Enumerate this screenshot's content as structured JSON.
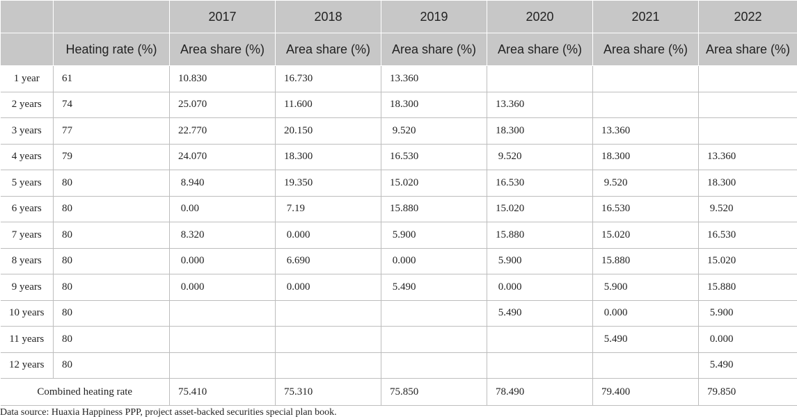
{
  "header": {
    "years": [
      "2017",
      "2018",
      "2019",
      "2020",
      "2021",
      "2022"
    ],
    "heating_rate_label": "Heating rate (%)",
    "area_share_label": "Area share (%)"
  },
  "rows": [
    {
      "label": "1 year",
      "rate": "61",
      "values": [
        "10.830",
        "16.730",
        "13.360",
        "",
        "",
        ""
      ]
    },
    {
      "label": "2 years",
      "rate": "74",
      "values": [
        "25.070",
        "11.600",
        "18.300",
        "13.360",
        "",
        ""
      ]
    },
    {
      "label": "3 years",
      "rate": "77",
      "values": [
        "22.770",
        "20.150",
        " 9.520",
        "18.300",
        "13.360",
        ""
      ]
    },
    {
      "label": "4 years",
      "rate": "79",
      "values": [
        "24.070",
        "18.300",
        "16.530",
        " 9.520",
        "18.300",
        "13.360"
      ]
    },
    {
      "label": "5 years",
      "rate": "80",
      "values": [
        " 8.940",
        "19.350",
        "15.020",
        "16.530",
        " 9.520",
        "18.300"
      ]
    },
    {
      "label": "6 years",
      "rate": "80",
      "values": [
        " 0.00",
        " 7.19",
        "15.880",
        "15.020",
        "16.530",
        " 9.520"
      ]
    },
    {
      "label": "7 years",
      "rate": "80",
      "values": [
        " 8.320",
        " 0.000",
        " 5.900",
        "15.880",
        "15.020",
        "16.530"
      ]
    },
    {
      "label": "8 years",
      "rate": "80",
      "values": [
        " 0.000",
        " 6.690",
        " 0.000",
        " 5.900",
        "15.880",
        "15.020"
      ]
    },
    {
      "label": "9 years",
      "rate": "80",
      "values": [
        " 0.000",
        " 0.000",
        " 5.490",
        " 0.000",
        " 5.900",
        "15.880"
      ]
    },
    {
      "label": "10 years",
      "rate": "80",
      "values": [
        "",
        "",
        "",
        " 5.490",
        " 0.000",
        " 5.900"
      ]
    },
    {
      "label": "11 years",
      "rate": "80",
      "values": [
        "",
        "",
        "",
        "",
        " 5.490",
        " 0.000"
      ]
    },
    {
      "label": "12 years",
      "rate": "80",
      "values": [
        "",
        "",
        "",
        "",
        "",
        " 5.490"
      ]
    }
  ],
  "combined": {
    "label": "Combined heating rate",
    "values": [
      "75.410",
      "75.310",
      "75.850",
      "78.490",
      "79.400",
      "79.850"
    ]
  },
  "footnote": "Data source: Huaxia Happiness PPP, project asset-backed securities special plan book."
}
